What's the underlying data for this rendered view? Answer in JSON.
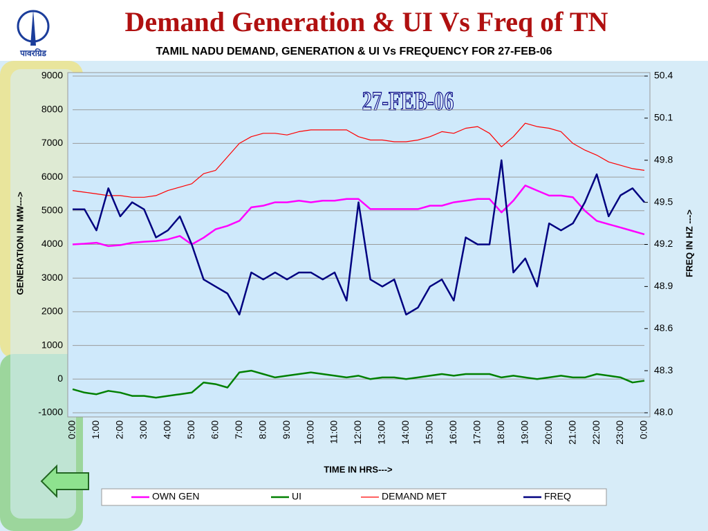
{
  "header": {
    "title": "Demand Generation & UI Vs Freq of TN",
    "logo_text": "पावरग्रिड"
  },
  "chart_data": {
    "type": "line",
    "title": "TAMIL NADU  DEMAND, GENERATION & UI Vs FREQUENCY FOR 27-FEB-06",
    "annotation": "27-FEB-06",
    "x_label": "TIME IN HRS--->",
    "y_label": "GENERATION IN MW--->",
    "y2_label": "FREQ IN HZ --->",
    "categories": [
      "0:00",
      null,
      "1:00",
      null,
      "2:00",
      null,
      "3:00",
      null,
      "4:00",
      null,
      "5:00",
      null,
      "6:00",
      null,
      "7:00",
      null,
      "8:00",
      null,
      "9:00",
      null,
      "10:00",
      null,
      "11:00",
      null,
      "12:00",
      null,
      "13:00",
      null,
      "14:00",
      null,
      "15:00",
      null,
      "16:00",
      null,
      "17:00",
      null,
      "18:00",
      null,
      "19:00",
      null,
      "20:00",
      null,
      "21:00",
      null,
      "22:00",
      null,
      "23:00",
      null,
      "0:00"
    ],
    "ylim": [
      -1000,
      9000
    ],
    "yticks": [
      -1000,
      0,
      1000,
      2000,
      3000,
      4000,
      5000,
      6000,
      7000,
      8000,
      9000
    ],
    "y2lim": [
      48.0,
      50.4
    ],
    "y2ticks": [
      {
        "value": 48.0,
        "label": "48.0"
      },
      48.3,
      48.6,
      48.9,
      49.2,
      49.5,
      49.8,
      50.1,
      50.4
    ],
    "grid": true,
    "legend": "bottom",
    "series": [
      {
        "name": "OWN GEN",
        "color": "#ff00ff",
        "width": 2.5,
        "values": [
          4000,
          4020,
          4050,
          3950,
          3980,
          4050,
          4080,
          4100,
          4150,
          4250,
          4000,
          4200,
          4450,
          4550,
          4700,
          5100,
          5150,
          5250,
          5250,
          5300,
          5250,
          5300,
          5300,
          5350,
          5350,
          5050,
          5050,
          5050,
          5050,
          5050,
          5150,
          5150,
          5250,
          5300,
          5350,
          5350,
          4950,
          5300,
          5750,
          5600,
          5450,
          5450,
          5400,
          5000,
          4700,
          4600,
          4500,
          4400,
          4300
        ]
      },
      {
        "name": "UI",
        "color": "#008000",
        "width": 2.5,
        "values": [
          -300,
          -400,
          -450,
          -350,
          -400,
          -500,
          -500,
          -550,
          -500,
          -450,
          -400,
          -100,
          -150,
          -250,
          200,
          250,
          150,
          50,
          100,
          150,
          200,
          150,
          100,
          50,
          100,
          0,
          50,
          50,
          0,
          50,
          100,
          150,
          100,
          150,
          150,
          150,
          50,
          100,
          50,
          0,
          50,
          100,
          50,
          50,
          150,
          100,
          50,
          -100,
          -50
        ]
      },
      {
        "name": "DEMAND MET",
        "color": "#ff0000",
        "width": 1.2,
        "values": [
          5600,
          5550,
          5500,
          5450,
          5450,
          5400,
          5400,
          5450,
          5600,
          5700,
          5800,
          6100,
          6200,
          6600,
          7000,
          7200,
          7300,
          7300,
          7250,
          7350,
          7400,
          7400,
          7400,
          7400,
          7200,
          7100,
          7100,
          7050,
          7050,
          7100,
          7200,
          7350,
          7300,
          7450,
          7500,
          7300,
          6900,
          7200,
          7600,
          7500,
          7450,
          7350,
          7000,
          6800,
          6650,
          6450,
          6350,
          6250,
          6200
        ]
      },
      {
        "name": "FREQ",
        "color": "#000080",
        "width": 2.5,
        "axis": "y2",
        "values": [
          49.45,
          49.45,
          49.3,
          49.6,
          49.4,
          49.5,
          49.45,
          49.25,
          49.3,
          49.4,
          49.2,
          48.95,
          48.9,
          48.85,
          48.7,
          49.0,
          48.95,
          49.0,
          48.95,
          49.0,
          49.0,
          48.95,
          49.0,
          48.8,
          49.5,
          48.95,
          48.9,
          48.95,
          48.7,
          48.75,
          48.9,
          48.95,
          48.8,
          49.25,
          49.2,
          49.2,
          49.8,
          49.0,
          49.1,
          48.9,
          49.35,
          49.3,
          49.35,
          49.5,
          49.7,
          49.4,
          49.55,
          49.6,
          49.5
        ]
      }
    ]
  }
}
